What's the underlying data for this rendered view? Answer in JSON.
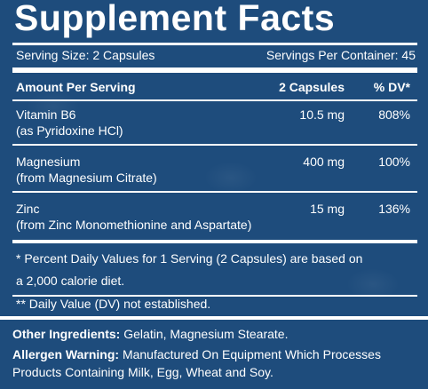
{
  "title": "Supplement Facts",
  "serving_size": "Serving Size: 2 Capsules",
  "servings_per_container": "Servings Per Container: 45",
  "table": {
    "header": [
      "Amount Per Serving",
      "2 Capsules",
      "% DV*"
    ],
    "rows": [
      [
        "Vitamin B6",
        "(as Pyridoxine HCl)",
        "10.5 mg",
        "808%"
      ],
      [
        "Magnesium",
        "(from Magnesium Citrate)",
        "400 mg",
        "100%"
      ],
      [
        "Zinc",
        "(from Zinc Monomethionine and Aspartate)",
        "15 mg",
        "136%"
      ]
    ]
  },
  "footnotes": [
    [
      "* Percent Daily Values for 1 Serving (2 Capsules) are based on",
      "a 2,000 calorie diet."
    ],
    "** Daily Value (DV) not established."
  ],
  "other_ingredients": {
    "label": "Other Ingredients:",
    "text": "Gelatin, Magnesium Stearate."
  },
  "allergen_warning": {
    "label": "Allergen Warning:",
    "lines": [
      "Manufactured On Equipment Which Processes",
      "Products Containing Milk, Egg, Wheat and Soy."
    ]
  }
}
